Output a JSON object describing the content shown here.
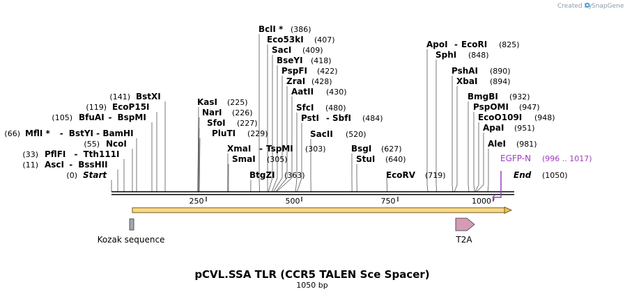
{
  "credit": {
    "text": "Created by",
    "brand": "SnapGene"
  },
  "title": "pCVL.SSA TLR (CCR5 TALEN Sce Spacer)",
  "subtitle": "1050 bp",
  "sequence_length": 1050,
  "ticks": [
    "250",
    "500",
    "750",
    "1000"
  ],
  "sites_left": [
    {
      "pos": "(0)",
      "name": "Start",
      "italic": true,
      "loc": 0
    },
    {
      "pos": "(11)",
      "name": "AscI",
      "sep": "-",
      "name2": "BssHII",
      "loc": 11
    },
    {
      "pos": "(33)",
      "name": "PflFI",
      "sep": "-",
      "name2": "Tth111I",
      "loc": 33
    },
    {
      "pos": "(55)",
      "name": "NcoI",
      "loc": 55
    },
    {
      "pos": "(66)",
      "name": "MflI *",
      "sep": "-",
      "name2": "BstYI  -  BamHI",
      "loc": 66
    },
    {
      "pos": "(105)",
      "name": "BfuAI",
      "sep": "-",
      "name2": "BspMI",
      "loc": 105
    },
    {
      "pos": "(119)",
      "name": "EcoP15I",
      "loc": 119
    },
    {
      "pos": "(141)",
      "name": "BstXI",
      "loc": 141
    }
  ],
  "sites_mid": [
    {
      "name": "KasI",
      "pos": "(225)",
      "loc": 225
    },
    {
      "name": "NarI",
      "pos": "(226)",
      "loc": 226
    },
    {
      "name": "SfoI",
      "pos": "(227)",
      "loc": 227
    },
    {
      "name": "PluTI",
      "pos": "(229)",
      "loc": 229
    },
    {
      "name": "XmaI",
      "sep": "-",
      "name2": "TspMI",
      "pos": "(303)",
      "loc": 303
    },
    {
      "name": "SmaI",
      "pos": "(305)",
      "loc": 305
    },
    {
      "name": "BtgZI",
      "pos": "(363)",
      "loc": 363
    }
  ],
  "sites_top": [
    {
      "name": "BclI *",
      "pos": "(386)",
      "loc": 386
    },
    {
      "name": "Eco53kI",
      "pos": "(407)",
      "loc": 407
    },
    {
      "name": "SacI",
      "pos": "(409)",
      "loc": 409
    },
    {
      "name": "BseYI",
      "pos": "(418)",
      "loc": 418
    },
    {
      "name": "PspFI",
      "pos": "(422)",
      "loc": 422
    },
    {
      "name": "ZraI",
      "pos": "(428)",
      "loc": 428
    },
    {
      "name": "AatII",
      "pos": "(430)",
      "loc": 430
    },
    {
      "name": "SfcI",
      "pos": "(480)",
      "loc": 480
    },
    {
      "name": "PstI",
      "sep": "-",
      "name2": "SbfI",
      "pos": "(484)",
      "loc": 484
    },
    {
      "name": "SacII",
      "pos": "(520)",
      "loc": 520
    },
    {
      "name": "BsgI",
      "pos": "(627)",
      "loc": 627
    },
    {
      "name": "StuI",
      "pos": "(640)",
      "loc": 640
    },
    {
      "name": "EcoRV",
      "pos": "(719)",
      "loc": 719
    }
  ],
  "sites_right": [
    {
      "name": "ApoI",
      "sep": "-",
      "name2": "EcoRI",
      "pos": "(825)",
      "loc": 825
    },
    {
      "name": "SphI",
      "pos": "(848)",
      "loc": 848
    },
    {
      "name": "PshAI",
      "pos": "(890)",
      "loc": 890
    },
    {
      "name": "XbaI",
      "pos": "(894)",
      "loc": 894
    },
    {
      "name": "BmgBI",
      "pos": "(932)",
      "loc": 932
    },
    {
      "name": "PspOMI",
      "pos": "(947)",
      "loc": 947
    },
    {
      "name": "EcoO109I",
      "pos": "(948)",
      "loc": 948
    },
    {
      "name": "ApaI",
      "pos": "(951)",
      "loc": 951
    },
    {
      "name": "AleI",
      "pos": "(981)",
      "loc": 981
    },
    {
      "name": "End",
      "italic": true,
      "pos": "(1050)",
      "loc": 1050
    }
  ],
  "primer": {
    "name": "EGFP-N",
    "range": "(996 .. 1017)",
    "color": "#9b3dbf"
  },
  "features": [
    {
      "name": "Kozak sequence",
      "color": "#a3a9b0"
    },
    {
      "name": "T2A",
      "color": "#d49bb4"
    }
  ],
  "orf_color": "#f0c060"
}
